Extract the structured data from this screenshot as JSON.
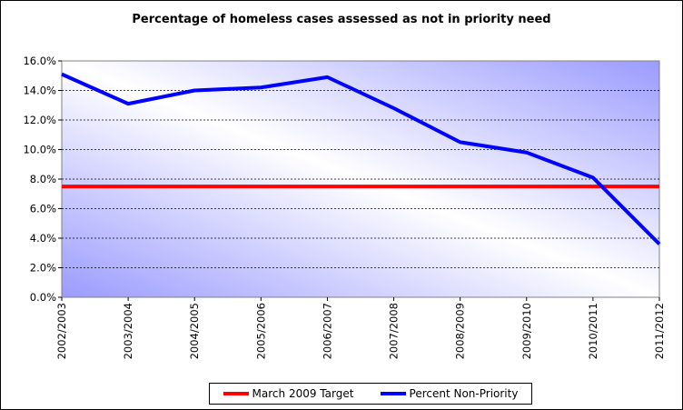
{
  "chart_data": {
    "type": "line",
    "title": "Percentage of homeless cases assessed as not in priority need",
    "categories": [
      "2002/2003",
      "2003/2004",
      "2004/2005",
      "2005/2006",
      "2006/2007",
      "2007/2008",
      "2008/2009",
      "2009/2010",
      "2010/2011",
      "2011/2012"
    ],
    "ylim": [
      0,
      16
    ],
    "yticks": [
      "0.0%",
      "2.0%",
      "4.0%",
      "6.0%",
      "8.0%",
      "10.0%",
      "12.0%",
      "14.0%",
      "16.0%"
    ],
    "grid": "horizontal-dashed",
    "legend_position": "bottom",
    "series": [
      {
        "name": "March 2009 Target",
        "color": "#ff0000",
        "values": [
          7.5,
          7.5,
          7.5,
          7.5,
          7.5,
          7.5,
          7.5,
          7.5,
          7.5,
          7.5
        ]
      },
      {
        "name": "Percent Non-Priority",
        "color": "#0000ff",
        "values": [
          15.1,
          13.1,
          14.0,
          14.2,
          14.9,
          12.8,
          10.5,
          9.8,
          8.1,
          3.6
        ]
      }
    ]
  }
}
